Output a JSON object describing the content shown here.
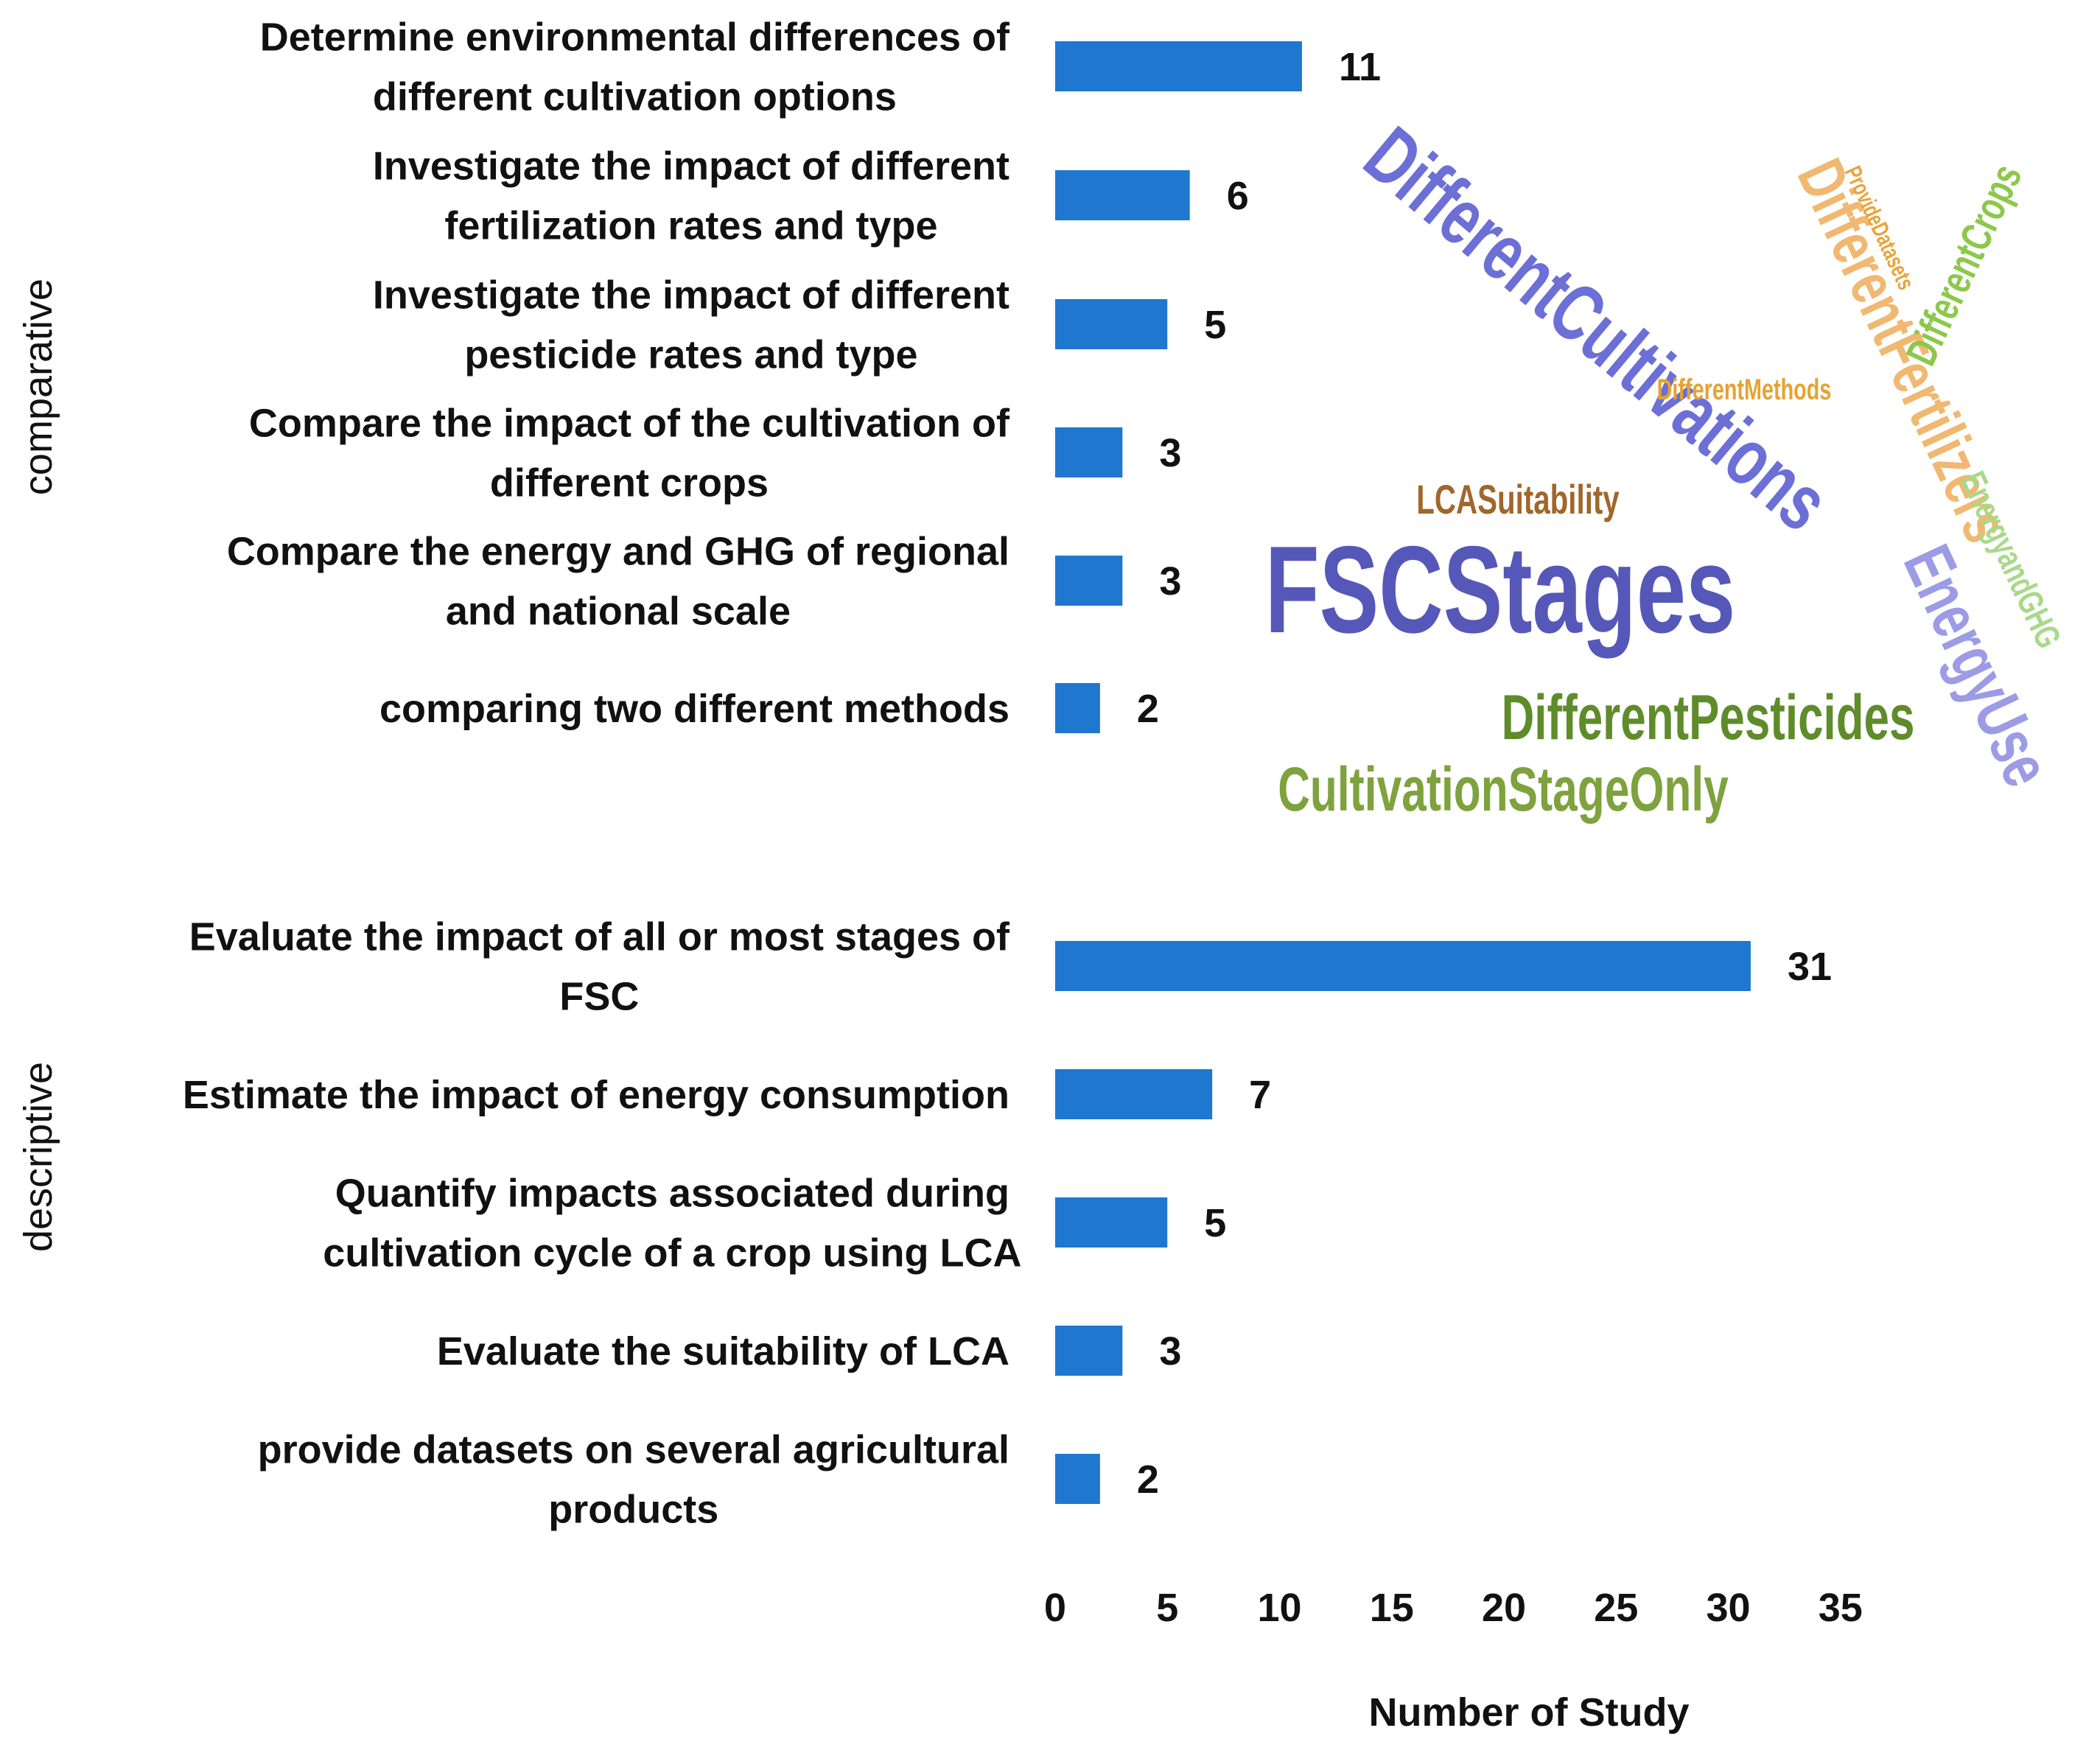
{
  "chart_data": {
    "type": "bar",
    "orientation": "horizontal",
    "xlabel": "Number of Study",
    "xlim": [
      0,
      35
    ],
    "xticks": [
      0,
      5,
      10,
      15,
      20,
      25,
      30,
      35
    ],
    "bar_color": "#1f77d0",
    "groups": [
      {
        "name": "comparative",
        "items": [
          {
            "label": [
              "Determine environmental differences of",
              "different cultivation options"
            ],
            "value": 11
          },
          {
            "label": [
              "Investigate the impact of different",
              "fertilization rates and type"
            ],
            "value": 6
          },
          {
            "label": [
              "Investigate the impact of different",
              "pesticide rates and type"
            ],
            "value": 5
          },
          {
            "label": [
              "Compare the impact of the cultivation of",
              "different crops"
            ],
            "value": 3
          },
          {
            "label": [
              "Compare the energy and GHG of regional",
              "and national scale"
            ],
            "value": 3
          },
          {
            "label": [
              "comparing two different methods"
            ],
            "value": 2
          }
        ]
      },
      {
        "name": "descriptive",
        "items": [
          {
            "label": [
              "Evaluate the impact of all or most stages of",
              "FSC"
            ],
            "value": 31
          },
          {
            "label": [
              "Estimate the impact of energy consumption"
            ],
            "value": 7
          },
          {
            "label": [
              "Quantify impacts associated during",
              "cultivation cycle of a crop using LCA"
            ],
            "value": 5
          },
          {
            "label": [
              "Evaluate the suitability of LCA"
            ],
            "value": 3
          },
          {
            "label": [
              "provide datasets on several agricultural",
              "products"
            ],
            "value": 2
          }
        ]
      }
    ]
  },
  "word_cloud": [
    {
      "text": "DifferentCultivations",
      "color": "#6b6fd6"
    },
    {
      "text": "DifferentFertilizers",
      "color": "#f0b870"
    },
    {
      "text": "ProvideDatasets",
      "color": "#e8a43a"
    },
    {
      "text": "DifferentCrops",
      "color": "#8cc84b"
    },
    {
      "text": "DifferentMethods",
      "color": "#e4a333"
    },
    {
      "text": "LCASuitability",
      "color": "#a0662b"
    },
    {
      "text": "FSCStages",
      "color": "#5558b8"
    },
    {
      "text": "EnergyandGHG",
      "color": "#a8d98a"
    },
    {
      "text": "EnergyUse",
      "color": "#9b9be6"
    },
    {
      "text": "DifferentPesticides",
      "color": "#5f8c2a"
    },
    {
      "text": "CultivationStageOnly",
      "color": "#7ea23e"
    }
  ]
}
